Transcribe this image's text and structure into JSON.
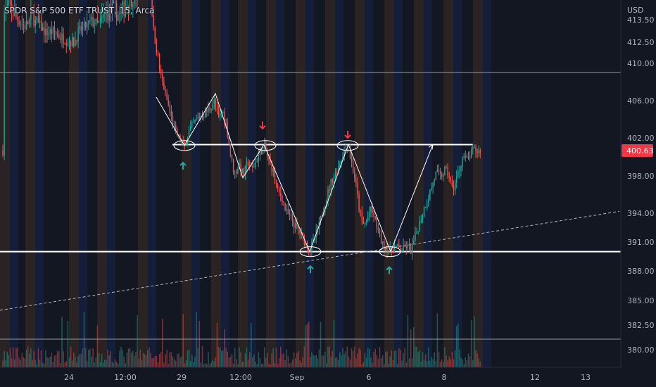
{
  "chart_data": {
    "type": "candlestick",
    "title": "SPDR S&P 500 ETF TRUST, 15, Arca",
    "currency": "USD",
    "current_price": "400.63",
    "y_ticks": [
      "413.50",
      "412.50",
      "410.00",
      "406.00",
      "402.00",
      "398.00",
      "394.00",
      "391.00",
      "388.00",
      "385.00",
      "382.50",
      "380.00"
    ],
    "x_ticks": [
      "24",
      "12:00",
      "29",
      "12:00",
      "Sep",
      "6",
      "8",
      "12",
      "13"
    ],
    "levels": {
      "resistance": 401.3,
      "support": 390.0,
      "upper_line": 410.0,
      "lower_line": 381.0
    },
    "trendline": {
      "from": [
        0,
        384.0
      ],
      "to": [
        880,
        394.2
      ]
    },
    "overlay_path": [
      [
        222,
        406.5
      ],
      [
        262,
        401.2
      ],
      [
        306,
        407.0
      ],
      [
        345,
        397.8
      ],
      [
        375,
        401.3
      ],
      [
        440,
        390.0
      ],
      [
        495,
        401.3
      ],
      [
        555,
        390.0
      ],
      [
        615,
        401.3
      ]
    ],
    "ellipses": [
      [
        262,
        401.2
      ],
      [
        377,
        401.2
      ],
      [
        441,
        390.0
      ],
      [
        494,
        401.2
      ],
      [
        554,
        390.0
      ]
    ],
    "up_arrows": [
      [
        260,
        399.4
      ],
      [
        441,
        388.5
      ],
      [
        553,
        388.4
      ]
    ],
    "down_arrows": [
      [
        373,
        403.0
      ],
      [
        494,
        402.0
      ]
    ],
    "price_path": [
      [
        5,
        414.8
      ],
      [
        15,
        415.0
      ],
      [
        25,
        414.4
      ],
      [
        35,
        413.8
      ],
      [
        45,
        414.5
      ],
      [
        55,
        414.0
      ],
      [
        65,
        413.3
      ],
      [
        75,
        413.4
      ],
      [
        85,
        413.0
      ],
      [
        95,
        412.7
      ],
      [
        105,
        412.5
      ],
      [
        112,
        413.4
      ],
      [
        120,
        413.8
      ],
      [
        130,
        414.2
      ],
      [
        140,
        414.0
      ],
      [
        150,
        414.7
      ],
      [
        160,
        414.9
      ],
      [
        170,
        414.6
      ],
      [
        180,
        415.2
      ],
      [
        190,
        415.6
      ],
      [
        200,
        416.2
      ],
      [
        210,
        417.0
      ],
      [
        214,
        416.5
      ],
      [
        218,
        413.5
      ],
      [
        222,
        412.2
      ],
      [
        228,
        409.8
      ],
      [
        235,
        406.8
      ],
      [
        242,
        404.6
      ],
      [
        250,
        402.4
      ],
      [
        257,
        401.6
      ],
      [
        262,
        401.0
      ],
      [
        268,
        402.6
      ],
      [
        275,
        403.5
      ],
      [
        282,
        404.2
      ],
      [
        290,
        404.6
      ],
      [
        298,
        405.2
      ],
      [
        304,
        406.0
      ],
      [
        310,
        404.0
      ],
      [
        316,
        405.0
      ],
      [
        322,
        403.2
      ],
      [
        328,
        400.0
      ],
      [
        333,
        398.2
      ],
      [
        340,
        399.2
      ],
      [
        346,
        398.0
      ],
      [
        352,
        399.5
      ],
      [
        358,
        398.6
      ],
      [
        364,
        399.6
      ],
      [
        370,
        400.6
      ],
      [
        376,
        401.0
      ],
      [
        382,
        399.5
      ],
      [
        388,
        398.6
      ],
      [
        394,
        396.4
      ],
      [
        400,
        395.8
      ],
      [
        406,
        394.2
      ],
      [
        412,
        393.6
      ],
      [
        418,
        392.8
      ],
      [
        424,
        392.3
      ],
      [
        430,
        391.4
      ],
      [
        436,
        390.7
      ],
      [
        441,
        390.2
      ],
      [
        447,
        391.4
      ],
      [
        453,
        392.6
      ],
      [
        459,
        394.4
      ],
      [
        465,
        396.0
      ],
      [
        471,
        397.5
      ],
      [
        477,
        398.4
      ],
      [
        483,
        399.4
      ],
      [
        488,
        400.5
      ],
      [
        494,
        401.2
      ],
      [
        499,
        399.6
      ],
      [
        505,
        397.4
      ],
      [
        510,
        394.6
      ],
      [
        515,
        392.8
      ],
      [
        520,
        393.0
      ],
      [
        526,
        394.4
      ],
      [
        532,
        393.6
      ],
      [
        538,
        392.0
      ],
      [
        544,
        390.6
      ],
      [
        549,
        390.4
      ],
      [
        554,
        389.9
      ],
      [
        560,
        390.6
      ],
      [
        566,
        390.3
      ],
      [
        572,
        390.2
      ],
      [
        578,
        390.6
      ],
      [
        584,
        390.1
      ],
      [
        590,
        391.6
      ],
      [
        596,
        393.0
      ],
      [
        602,
        394.4
      ],
      [
        608,
        395.6
      ],
      [
        614,
        397.0
      ],
      [
        620,
        398.4
      ],
      [
        626,
        397.9
      ],
      [
        632,
        398.6
      ],
      [
        638,
        398.1
      ],
      [
        643,
        396.4
      ],
      [
        648,
        397.6
      ],
      [
        653,
        398.8
      ],
      [
        658,
        400.2
      ],
      [
        663,
        399.6
      ],
      [
        668,
        400.2
      ],
      [
        673,
        400.8
      ],
      [
        678,
        400.6
      ],
      [
        683,
        400.63
      ]
    ]
  }
}
